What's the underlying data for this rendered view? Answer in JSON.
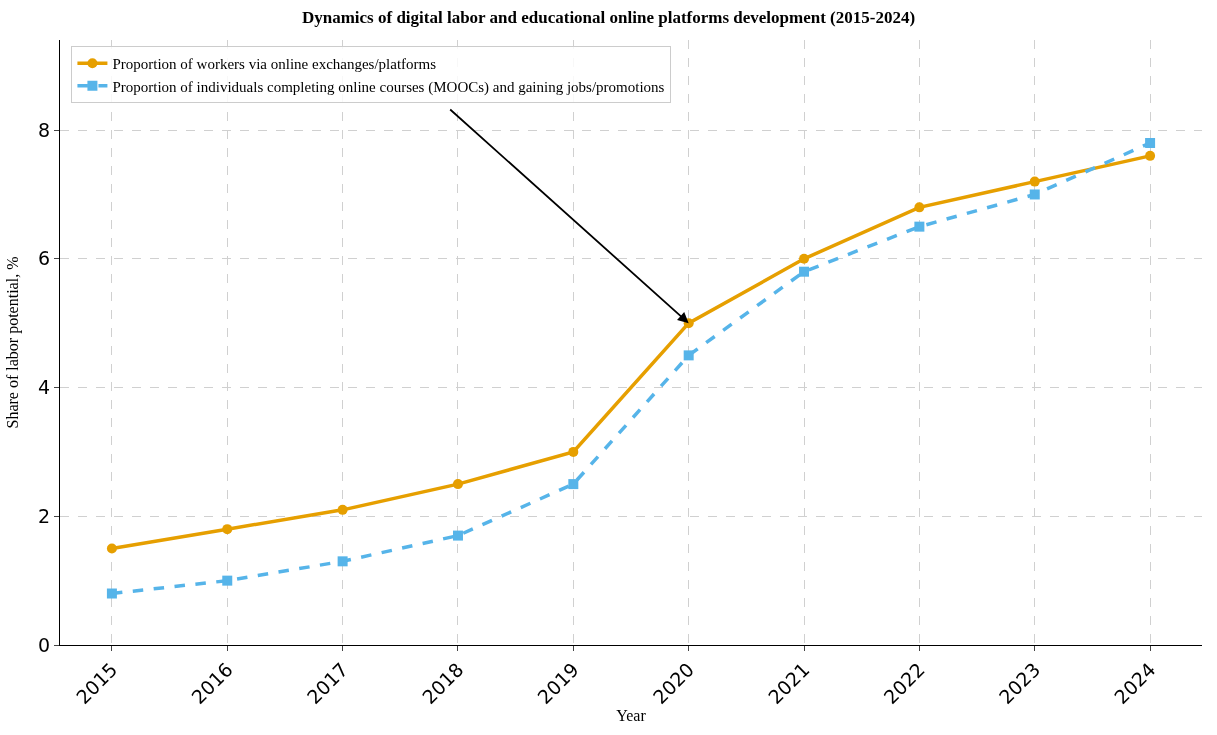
{
  "chart_data": {
    "type": "line",
    "title": "Dynamics of digital labor and educational online platforms development (2015-2024)",
    "xlabel": "Year",
    "ylabel": "Share of labor potential, %",
    "categories": [
      "2015",
      "2016",
      "2017",
      "2018",
      "2019",
      "2020",
      "2021",
      "2022",
      "2023",
      "2024"
    ],
    "series": [
      {
        "name": "Proportion of workers via online exchanges/platforms",
        "color": "#e69f00",
        "marker": "circle",
        "line_style": "solid",
        "values": [
          1.5,
          1.8,
          2.1,
          2.5,
          3.0,
          5.0,
          6.0,
          6.8,
          7.2,
          7.6
        ]
      },
      {
        "name": "Proportion of individuals completing online courses (MOOCs) and gaining jobs/promotions",
        "color": "#56b4e9",
        "marker": "square",
        "line_style": "dashed",
        "values": [
          0.8,
          1.0,
          1.3,
          1.7,
          2.5,
          4.5,
          5.8,
          6.5,
          7.0,
          7.8
        ]
      }
    ],
    "ylim": [
      0,
      9.4
    ],
    "yticks": [
      0,
      2,
      4,
      6,
      8
    ],
    "grid": true,
    "legend": "top left"
  }
}
